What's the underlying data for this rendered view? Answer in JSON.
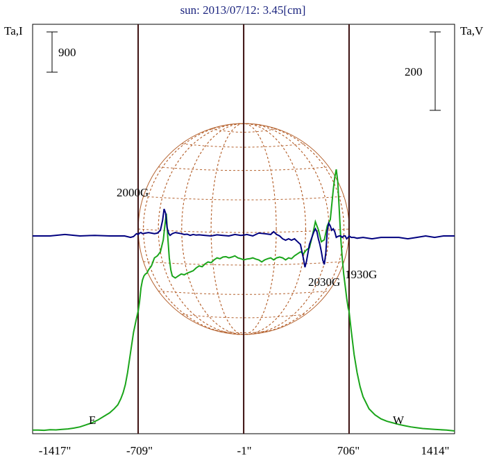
{
  "chart_data": {
    "type": "line",
    "title": "sun: 2013/07/12: 3.45[cm]",
    "left_axis_label": "Ta,I",
    "right_axis_label": "Ta,V",
    "left_scale_bar": "900",
    "right_scale_bar": "200",
    "x_ticks": [
      "-1417\"",
      "-709\"",
      "-1\"",
      "706\"",
      "1414\""
    ],
    "x_tick_values": [
      -1417,
      -709,
      -1,
      706,
      1414
    ],
    "xlim": [
      -1417,
      1414
    ],
    "limb_markers": [
      {
        "label": "E",
        "x": -709
      },
      {
        "label": "W",
        "x": 706
      }
    ],
    "limb_lines": [
      -709,
      -1,
      706
    ],
    "limb_values": [
      -709,
      706
    ],
    "center_value": -1,
    "annotations": [
      {
        "label": "2000G",
        "x": -530
      },
      {
        "label": "2030G",
        "x": 430
      },
      {
        "label": "1930G",
        "x": 640
      }
    ],
    "colors": {
      "stokes_I": "#1aa51a",
      "stokes_V": "#00007f",
      "disk_grid": "#b4602c",
      "vertical_lines": "#3a0e0e",
      "title": "#1a237e"
    },
    "series": [
      {
        "name": "I",
        "x": [
          -1417,
          -1380,
          -1340,
          -1300,
          -1260,
          -1220,
          -1180,
          -1140,
          -1100,
          -1060,
          -1020,
          -980,
          -940,
          -900,
          -870,
          -845,
          -825,
          -810,
          -795,
          -780,
          -760,
          -740,
          -720,
          -709,
          -700,
          -690,
          -680,
          -670,
          -660,
          -650,
          -640,
          -620,
          -600,
          -580,
          -560,
          -540,
          -530,
          -520,
          -510,
          -500,
          -490,
          -480,
          -460,
          -440,
          -420,
          -400,
          -380,
          -360,
          -340,
          -320,
          -300,
          -280,
          -260,
          -240,
          -220,
          -200,
          -180,
          -160,
          -140,
          -120,
          -100,
          -80,
          -60,
          -40,
          -20,
          0,
          20,
          40,
          60,
          80,
          100,
          120,
          140,
          160,
          180,
          200,
          220,
          240,
          260,
          280,
          300,
          320,
          340,
          360,
          380,
          400,
          420,
          440,
          460,
          480,
          500,
          520,
          540,
          560,
          580,
          600,
          610,
          620,
          630,
          640,
          650,
          660,
          670,
          680,
          690,
          700,
          706,
          720,
          740,
          760,
          780,
          800,
          840,
          880,
          920,
          960,
          1000,
          1040,
          1080,
          1120,
          1160,
          1200,
          1240,
          1280,
          1320,
          1360,
          1414
        ],
        "y": [
          0.02,
          0.02,
          0.015,
          0.03,
          0.025,
          0.04,
          0.05,
          0.07,
          0.1,
          0.15,
          0.2,
          0.27,
          0.36,
          0.45,
          0.55,
          0.65,
          0.8,
          0.95,
          1.15,
          1.45,
          1.95,
          2.45,
          2.8,
          2.98,
          3.2,
          3.55,
          3.75,
          3.85,
          3.9,
          3.92,
          4.0,
          4.1,
          4.3,
          4.35,
          4.45,
          4.75,
          5.1,
          5.4,
          4.8,
          4.3,
          4.0,
          3.85,
          3.8,
          3.85,
          3.9,
          3.88,
          3.92,
          3.95,
          3.98,
          4.05,
          4.1,
          4.08,
          4.15,
          4.2,
          4.18,
          4.25,
          4.3,
          4.28,
          4.32,
          4.33,
          4.3,
          4.32,
          4.35,
          4.3,
          4.28,
          4.25,
          4.27,
          4.28,
          4.3,
          4.27,
          4.25,
          4.2,
          4.25,
          4.28,
          4.3,
          4.25,
          4.3,
          4.32,
          4.3,
          4.25,
          4.3,
          4.28,
          4.35,
          4.4,
          4.45,
          4.4,
          4.5,
          4.55,
          4.85,
          5.2,
          5.0,
          4.7,
          4.75,
          5.1,
          5.25,
          6.0,
          6.3,
          6.5,
          6.2,
          5.5,
          4.8,
          4.3,
          3.9,
          3.6,
          3.3,
          3.05,
          2.98,
          2.5,
          1.9,
          1.45,
          1.1,
          0.85,
          0.55,
          0.4,
          0.3,
          0.24,
          0.2,
          0.16,
          0.13,
          0.1,
          0.08,
          0.06,
          0.05,
          0.04,
          0.03,
          0.02,
          0.0
        ]
      },
      {
        "name": "V",
        "x": [
          -1417,
          -1300,
          -1200,
          -1100,
          -1000,
          -900,
          -800,
          -760,
          -740,
          -720,
          -709,
          -700,
          -690,
          -680,
          -660,
          -640,
          -620,
          -600,
          -580,
          -560,
          -545,
          -535,
          -525,
          -515,
          -505,
          -495,
          -480,
          -460,
          -440,
          -420,
          -400,
          -380,
          -360,
          -340,
          -320,
          -300,
          -260,
          -220,
          -180,
          -140,
          -100,
          -60,
          -20,
          0,
          20,
          60,
          100,
          140,
          180,
          200,
          220,
          240,
          260,
          280,
          300,
          320,
          340,
          360,
          380,
          400,
          410,
          420,
          430,
          440,
          450,
          460,
          470,
          480,
          490,
          500,
          510,
          520,
          530,
          540,
          550,
          560,
          570,
          580,
          590,
          600,
          610,
          620,
          630,
          640,
          650,
          660,
          670,
          680,
          690,
          700,
          706,
          720,
          740,
          760,
          800,
          860,
          920,
          980,
          1040,
          1100,
          1160,
          1220,
          1280,
          1340,
          1414
        ],
        "y": [
          0.0,
          0.0,
          0.05,
          0.0,
          0.02,
          0.0,
          0.0,
          -0.05,
          -0.02,
          0.08,
          0.05,
          0.1,
          0.12,
          0.08,
          0.1,
          0.12,
          0.1,
          0.08,
          0.1,
          0.2,
          0.55,
          0.95,
          0.8,
          0.3,
          0.1,
          0.02,
          0.08,
          0.12,
          0.1,
          0.08,
          0.05,
          0.06,
          0.02,
          0.05,
          0.03,
          0.04,
          0.02,
          0.0,
          0.04,
          0.02,
          0.0,
          0.05,
          0.02,
          0.03,
          0.05,
          0.0,
          0.1,
          0.08,
          0.05,
          0.15,
          0.05,
          0.0,
          -0.1,
          -0.15,
          -0.1,
          -0.15,
          -0.1,
          -0.2,
          -0.3,
          -0.8,
          -1.1,
          -0.9,
          -0.6,
          -0.3,
          -0.15,
          0.0,
          0.15,
          0.25,
          0.15,
          -0.1,
          -0.3,
          -0.55,
          -0.85,
          -1.0,
          -0.6,
          0.2,
          0.45,
          0.35,
          0.2,
          0.25,
          0.15,
          -0.05,
          -0.02,
          0.0,
          0.0,
          -0.05,
          0.0,
          0.0,
          -0.1,
          -0.05,
          0.0,
          -0.05,
          -0.05,
          -0.08,
          -0.05,
          -0.1,
          -0.05,
          -0.05,
          -0.05,
          -0.1,
          -0.05,
          0.0,
          -0.05,
          0.0,
          0.0
        ]
      }
    ]
  }
}
